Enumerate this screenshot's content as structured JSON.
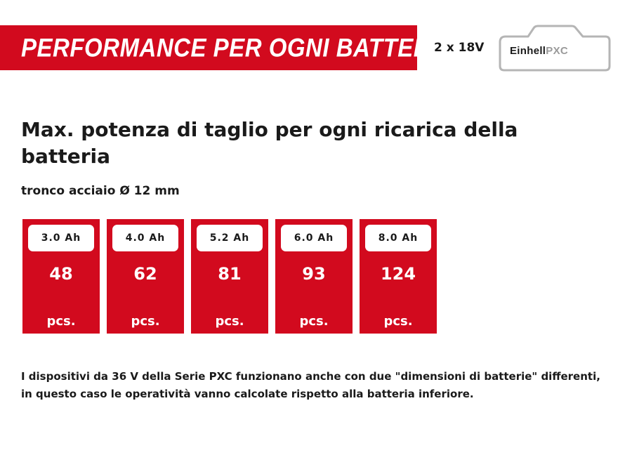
{
  "banner": {
    "title": "PERFORMANCE PER OGNI BATTERIA"
  },
  "battery": {
    "voltage": "2 x 18V",
    "brand": "Einhell",
    "series": "PXC"
  },
  "heading": "Max. potenza di taglio per ogni ricarica della batteria",
  "subheading": "tronco acciaio Ø 12 mm",
  "cards": [
    {
      "capacity": "3.0 Ah",
      "value": "48",
      "unit": "pcs."
    },
    {
      "capacity": "4.0 Ah",
      "value": "62",
      "unit": "pcs."
    },
    {
      "capacity": "5.2 Ah",
      "value": "81",
      "unit": "pcs."
    },
    {
      "capacity": "6.0 Ah",
      "value": "93",
      "unit": "pcs."
    },
    {
      "capacity": "8.0 Ah",
      "value": "124",
      "unit": "pcs."
    }
  ],
  "footnote": "I dispositivi da 36 V della Serie PXC funzionano anche con due \"dimensioni di batterie\" differenti, in questo caso le operatività vanno calcolate rispetto alla batteria inferiore.",
  "colors": {
    "brand_red": "#d20a1e",
    "text": "#1a1a1a",
    "logo_outline": "#b5b5b5"
  }
}
